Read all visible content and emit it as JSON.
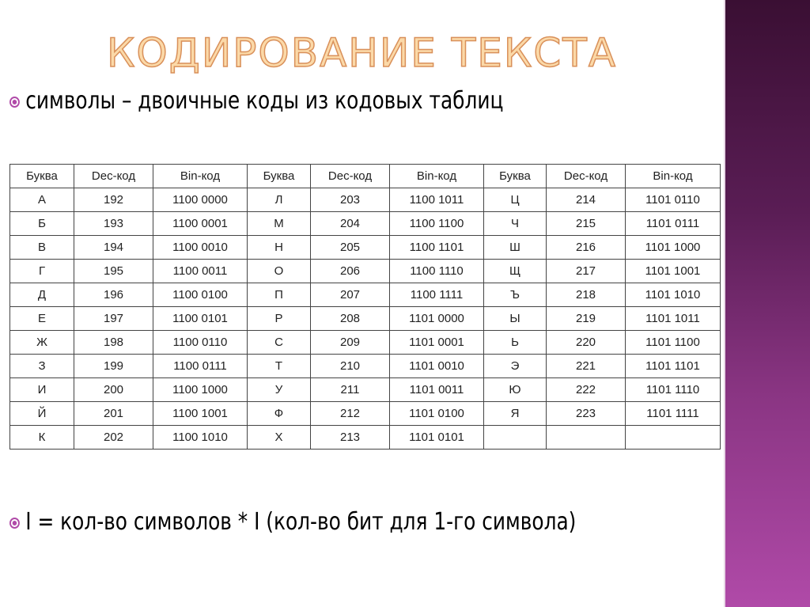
{
  "title": "КОДИРОВАНИЕ ТЕКСТА",
  "bullets": [
    "символы – двоичные коды из кодовых таблиц",
    "I = кол-во символов * I (кол-во бит для 1-го символа)"
  ],
  "colors": {
    "accent": "#b04aa8",
    "sidebar_top": "#3a0f33",
    "sidebar_bottom": "#b04aa8",
    "title_fill": "#fbd9a8"
  },
  "table": {
    "headers": [
      "Буква",
      "Dec-код",
      "Bin-код",
      "Буква",
      "Dec-код",
      "Bin-код",
      "Буква",
      "Dec-код",
      "Bin-код"
    ],
    "rows": [
      [
        "А",
        "192",
        "1100 0000",
        "Л",
        "203",
        "1100 1011",
        "Ц",
        "214",
        "1101 0110"
      ],
      [
        "Б",
        "193",
        "1100 0001",
        "М",
        "204",
        "1100 1100",
        "Ч",
        "215",
        "1101 0111"
      ],
      [
        "В",
        "194",
        "1100 0010",
        "Н",
        "205",
        "1100 1101",
        "Ш",
        "216",
        "1101 1000"
      ],
      [
        "Г",
        "195",
        "1100 0011",
        "О",
        "206",
        "1100 1110",
        "Щ",
        "217",
        "1101 1001"
      ],
      [
        "Д",
        "196",
        "1100 0100",
        "П",
        "207",
        "1100 1111",
        "Ъ",
        "218",
        "1101 1010"
      ],
      [
        "Е",
        "197",
        "1100 0101",
        "Р",
        "208",
        "1101 0000",
        "Ы",
        "219",
        "1101 1011"
      ],
      [
        "Ж",
        "198",
        "1100 0110",
        "С",
        "209",
        "1101 0001",
        "Ь",
        "220",
        "1101 1100"
      ],
      [
        "З",
        "199",
        "1100 0111",
        "Т",
        "210",
        "1101 0010",
        "Э",
        "221",
        "1101 1101"
      ],
      [
        "И",
        "200",
        "1100 1000",
        "У",
        "211",
        "1101 0011",
        "Ю",
        "222",
        "1101 1110"
      ],
      [
        "Й",
        "201",
        "1100 1001",
        "Ф",
        "212",
        "1101 0100",
        "Я",
        "223",
        "1101 1111"
      ],
      [
        "К",
        "202",
        "1100 1010",
        "Х",
        "213",
        "1101 0101",
        "",
        "",
        ""
      ]
    ]
  }
}
